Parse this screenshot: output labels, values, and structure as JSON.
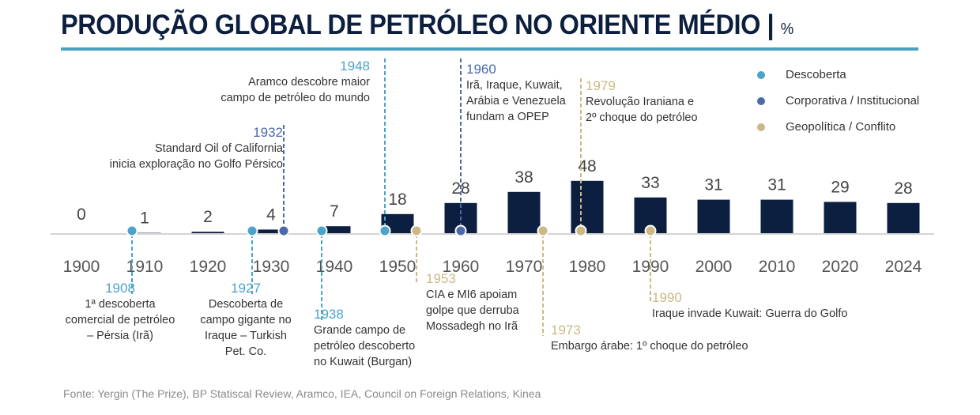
{
  "header": {
    "title": "PRODUÇÃO GLOBAL DE PETRÓLEO NO ORIENTE MÉDIO",
    "separator": "|",
    "unit": "%"
  },
  "legend": [
    {
      "label": "Descoberta",
      "color": "#4aa3c8"
    },
    {
      "label": "Corporativa / Institucional",
      "color": "#4a6aa8"
    },
    {
      "label": "Geopolítica / Conflito",
      "color": "#cbb884"
    }
  ],
  "chart_data": {
    "type": "bar",
    "title": "PRODUÇÃO GLOBAL DE PETRÓLEO NO ORIENTE MÉDIO | %",
    "xlabel": "",
    "ylabel": "%",
    "ylim": [
      0,
      50
    ],
    "categories": [
      "1900",
      "1910",
      "1920",
      "1930",
      "1940",
      "1950",
      "1960",
      "1970",
      "1980",
      "1990",
      "2000",
      "2010",
      "2020",
      "2024"
    ],
    "values": [
      0,
      1,
      2,
      4,
      7,
      18,
      28,
      38,
      48,
      33,
      31,
      31,
      29,
      28
    ],
    "bar_color": "#0c1f40",
    "grid": false,
    "events": [
      {
        "year": "1908",
        "category": "Descoberta",
        "text": [
          "1ª descoberta",
          "comercial de petróleo",
          "– Pérsia (Irã)"
        ]
      },
      {
        "year": "1927",
        "category": "Descoberta",
        "text": [
          "Descoberta de",
          "campo gigante no",
          "Iraque – Turkish",
          "Pet. Co."
        ]
      },
      {
        "year": "1932",
        "category": "Corporativa / Institucional",
        "text": [
          "Standard Oil of California",
          "inicia exploração no Golfo Pérsico"
        ]
      },
      {
        "year": "1938",
        "category": "Descoberta",
        "text": [
          "Grande campo de",
          "petróleo descoberto",
          "no Kuwait (Burgan)"
        ]
      },
      {
        "year": "1948",
        "category": "Descoberta",
        "text": [
          "Aramco descobre maior",
          "campo de petróleo do mundo"
        ]
      },
      {
        "year": "1953",
        "category": "Geopolítica / Conflito",
        "text": [
          "CIA e MI6 apoiam",
          "golpe que derruba",
          "Mossadegh no Irã"
        ]
      },
      {
        "year": "1960",
        "category": "Corporativa / Institucional",
        "text": [
          "Irã, Iraque, Kuwait,",
          "Arábia e Venezuela",
          "fundam a OPEP"
        ]
      },
      {
        "year": "1973",
        "category": "Geopolítica / Conflito",
        "text": [
          "Embargo árabe: 1º choque do petróleo"
        ]
      },
      {
        "year": "1979",
        "category": "Geopolítica / Conflito",
        "text": [
          "Revolução Iraniana e",
          "2º choque do petróleo"
        ]
      },
      {
        "year": "1990",
        "category": "Geopolítica / Conflito",
        "text": [
          "Iraque invade Kuwait: Guerra do Golfo"
        ]
      }
    ]
  },
  "footer": {
    "source": "Fonte: Yergin (The Prize), BP Statiscal Review, Aramco, IEA, Council on Foreign Relations, Kinea"
  }
}
